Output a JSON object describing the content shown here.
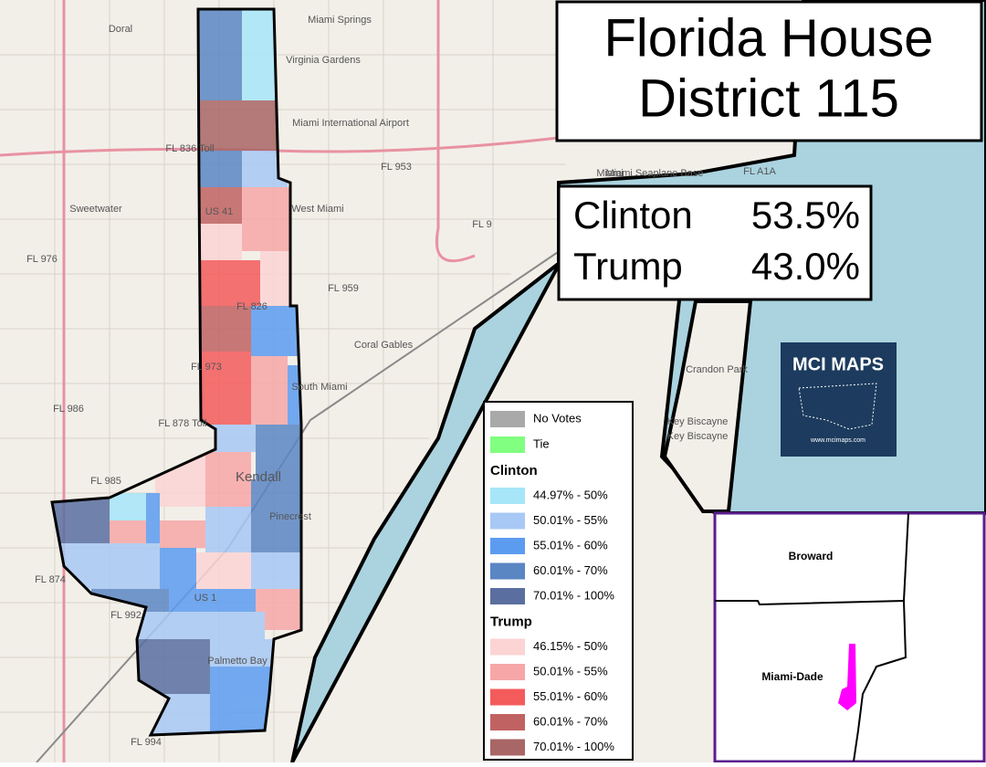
{
  "title": [
    "Florida House",
    "District 115"
  ],
  "results": [
    {
      "candidate": "Clinton",
      "share": "53.5%"
    },
    {
      "candidate": "Trump",
      "share": "43.0%"
    }
  ],
  "legend": {
    "items": [
      {
        "label": "No Votes",
        "color": "#a9a9a9"
      },
      {
        "label": "Tie",
        "color": "#80ff80"
      }
    ],
    "groups": [
      {
        "name": "Clinton",
        "ranges": [
          {
            "label": "44.97% - 50%",
            "color": "#a6e6f8"
          },
          {
            "label": "50.01% - 55%",
            "color": "#a8c8f5"
          },
          {
            "label": "55.01% - 60%",
            "color": "#5c9cf0"
          },
          {
            "label": "60.01% - 70%",
            "color": "#5b86c4"
          },
          {
            "label": "70.01% - 100%",
            "color": "#5a6fa0"
          }
        ]
      },
      {
        "name": "Trump",
        "ranges": [
          {
            "label": "46.15% - 50%",
            "color": "#fcd4d4"
          },
          {
            "label": "50.01% - 55%",
            "color": "#f7a7a7"
          },
          {
            "label": "55.01% - 60%",
            "color": "#f45b5b"
          },
          {
            "label": "60.01% - 70%",
            "color": "#c06262"
          },
          {
            "label": "70.01% - 100%",
            "color": "#a86666"
          }
        ]
      }
    ]
  },
  "map_labels": [
    "Doral",
    "Miami Springs",
    "Virginia Gardens",
    "Miami International Airport",
    "FL 836 Toll",
    "FL 953",
    "Miami",
    "Miami Seaplane Base",
    "FL A1A",
    "Sweetwater",
    "West Miami",
    "US 41",
    "FL 9",
    "FL 976",
    "FL 959",
    "FL 826",
    "Coral Gables",
    "FL 973",
    "South Miami",
    "Crandon Park",
    "FL 986",
    "FL 878 Toll",
    "Key Biscayne",
    "Key Biscayne",
    "FL 985",
    "Kendall",
    "Pinecrest",
    "FL 874",
    "US 1",
    "FL 992",
    "Palmetto Bay",
    "FL 994"
  ],
  "inset": {
    "labels": [
      "Broward",
      "Miami-Dade"
    ]
  },
  "logo": {
    "title": "MCI MAPS",
    "url": "www.mcimaps.com"
  }
}
